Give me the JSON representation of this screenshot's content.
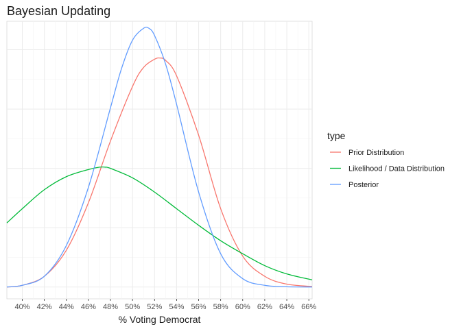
{
  "chart_data": {
    "type": "line",
    "title": "Bayesian Updating",
    "xlabel": "% Voting Democrat",
    "ylabel": "",
    "xlim": [
      0.386,
      0.663
    ],
    "ylim": [
      -0.05,
      1.12
    ],
    "x_ticks": [
      0.4,
      0.42,
      0.44,
      0.46,
      0.48,
      0.5,
      0.52,
      0.54,
      0.56,
      0.58,
      0.6,
      0.62,
      0.64,
      0.66
    ],
    "x_tick_labels": [
      "40%",
      "42%",
      "44%",
      "46%",
      "48%",
      "50%",
      "52%",
      "54%",
      "56%",
      "58%",
      "60%",
      "62%",
      "64%",
      "66%"
    ],
    "grid": true,
    "y_axis_labels_shown": false,
    "legend": {
      "title": "type",
      "placement": "right"
    },
    "series": [
      {
        "name": "Prior Distribution",
        "color": "#F8766D",
        "x": [
          0.386,
          0.4,
          0.42,
          0.44,
          0.46,
          0.48,
          0.5,
          0.51,
          0.52,
          0.525,
          0.53,
          0.54,
          0.56,
          0.58,
          0.6,
          0.62,
          0.64,
          0.663
        ],
        "y": [
          0.0,
          0.007,
          0.045,
          0.155,
          0.355,
          0.615,
          0.845,
          0.925,
          0.96,
          0.965,
          0.955,
          0.89,
          0.64,
          0.33,
          0.13,
          0.045,
          0.012,
          0.002
        ]
      },
      {
        "name": "Likelihood / Data Distribution",
        "color": "#00BA38",
        "x": [
          0.386,
          0.4,
          0.42,
          0.44,
          0.46,
          0.47,
          0.475,
          0.48,
          0.5,
          0.52,
          0.54,
          0.56,
          0.58,
          0.6,
          0.62,
          0.64,
          0.663
        ],
        "y": [
          0.27,
          0.33,
          0.41,
          0.465,
          0.495,
          0.505,
          0.505,
          0.5,
          0.46,
          0.4,
          0.33,
          0.26,
          0.195,
          0.14,
          0.09,
          0.055,
          0.03
        ]
      },
      {
        "name": "Posterior",
        "color": "#619CFF",
        "x": [
          0.386,
          0.4,
          0.42,
          0.44,
          0.46,
          0.48,
          0.49,
          0.5,
          0.51,
          0.515,
          0.52,
          0.53,
          0.54,
          0.56,
          0.58,
          0.6,
          0.62,
          0.64,
          0.663
        ],
        "y": [
          0.0,
          0.007,
          0.045,
          0.175,
          0.42,
          0.755,
          0.92,
          1.04,
          1.09,
          1.09,
          1.06,
          0.94,
          0.77,
          0.4,
          0.14,
          0.035,
          0.007,
          0.001,
          0.0
        ]
      }
    ]
  }
}
